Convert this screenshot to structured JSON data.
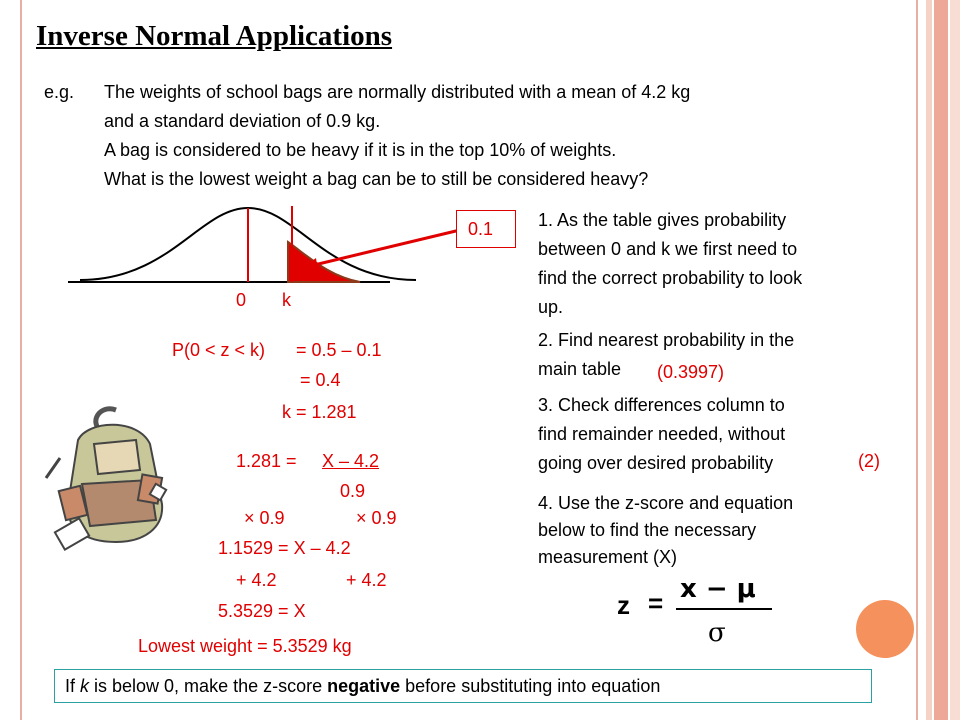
{
  "slide": {
    "title": "Inverse Normal Applications",
    "eg_label": "e.g.",
    "problem": [
      "The weights of school bags are normally distributed with a mean of 4.2 kg",
      "and a standard deviation of 0.9 kg.",
      "A bag is considered to be heavy if it is in the top 10% of weights.",
      "What is the lowest weight a bag can be to still be considered heavy?"
    ],
    "diagram": {
      "tail_label": "0.1",
      "zero_label": "0",
      "k_label": "k"
    },
    "steps": [
      [
        "1. As the table gives probability",
        "between 0 and k we first need to",
        "find the correct probability to look",
        "up."
      ],
      [
        "2. Find nearest probability in the",
        "main table"
      ],
      [
        "3. Check differences column to",
        "find remainder needed, without",
        "going over desired probability"
      ],
      [
        "4. Use the z-score and equation",
        "below to find the necessary",
        "measurement (X)"
      ]
    ],
    "step2_value": "(0.3997)",
    "step3_value": "(2)",
    "working": {
      "p_lhs": "P(0 < z < k)",
      "p_rhs": "= 0.5 – 0.1",
      "p_rhs2": "= 0.4",
      "k_line": "k = 1.281",
      "eq1_lhs": "1.281 =",
      "eq1_num": "X – 4.2",
      "eq1_den": "0.9",
      "mul_left": "× 0.9",
      "mul_right": "× 0.9",
      "eq2": "1.1529 = X – 4.2",
      "add_left": "+ 4.2",
      "add_right": "+ 4.2",
      "eq3": "5.3529 = X",
      "answer": "Lowest weight = 5.3529 kg"
    },
    "formula": {
      "lhs": "z",
      "equals": "=",
      "numerator": "x − μ",
      "denominator": "σ"
    },
    "note": {
      "pre": "If ",
      "k": "k",
      "mid": " is below 0, make the z-score ",
      "bold": "negative",
      "post": " before substituting into equation"
    },
    "colors": {
      "accent": "#e00000",
      "frame": "#e8b0a0",
      "note_border": "#2aa0a0",
      "dot": "#f4915c"
    }
  }
}
